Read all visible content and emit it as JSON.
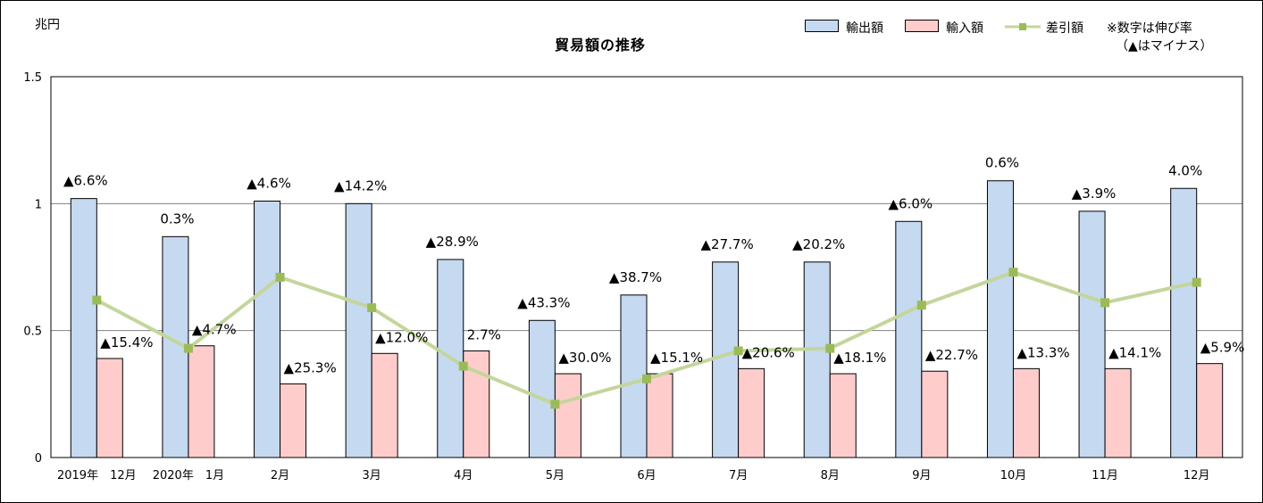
{
  "unit_label": "兆円",
  "legend": {
    "exports": "輸出額",
    "imports": "輸入額",
    "balance": "差引額",
    "note_line1": "※数字は伸び率",
    "note_line2": "（▲はマイナス）"
  },
  "colors": {
    "exports_fill": "#c5d9f1",
    "imports_fill": "#ffcccc",
    "balance_line": "#c3d69b",
    "balance_marker": "#9bbb59",
    "gridline": "#808080"
  },
  "chart_data": {
    "type": "bar",
    "title": "貿易額の推移",
    "xlabel": "",
    "ylabel": "兆円",
    "ylim": [
      0,
      1.5
    ],
    "yticks": [
      "0",
      "0.5",
      "1",
      "1.5"
    ],
    "grid": true,
    "legend_position": "top-right",
    "categories": [
      "2019年　12月",
      "2020年　1月",
      "2月",
      "3月",
      "4月",
      "5月",
      "6月",
      "7月",
      "8月",
      "9月",
      "10月",
      "11月",
      "12月"
    ],
    "series": [
      {
        "name": "輸出額",
        "type": "bar",
        "values": [
          1.02,
          0.87,
          1.01,
          1.0,
          0.78,
          0.54,
          0.64,
          0.77,
          0.77,
          0.93,
          1.09,
          0.97,
          1.06
        ],
        "labels": [
          "▲6.6%",
          "0.3%",
          "▲4.6%",
          "▲14.2%",
          "▲28.9%",
          "▲43.3%",
          "▲38.7%",
          "▲27.7%",
          "▲20.2%",
          "▲6.0%",
          "0.6%",
          "▲3.9%",
          "4.0%"
        ]
      },
      {
        "name": "輸入額",
        "type": "bar",
        "values": [
          0.39,
          0.44,
          0.29,
          0.41,
          0.42,
          0.33,
          0.33,
          0.35,
          0.33,
          0.34,
          0.35,
          0.35,
          0.37
        ],
        "labels": [
          "▲15.4%",
          "▲4.7%",
          "▲25.3%",
          "▲12.0%",
          "2.7%",
          "▲30.0%",
          "▲15.1%",
          "▲20.6%",
          "▲18.1%",
          "▲22.7%",
          "▲13.3%",
          "▲14.1%",
          "▲5.9%"
        ]
      },
      {
        "name": "差引額",
        "type": "line",
        "values": [
          0.62,
          0.43,
          0.71,
          0.59,
          0.36,
          0.21,
          0.31,
          0.42,
          0.43,
          0.6,
          0.73,
          0.61,
          0.69
        ]
      }
    ]
  }
}
